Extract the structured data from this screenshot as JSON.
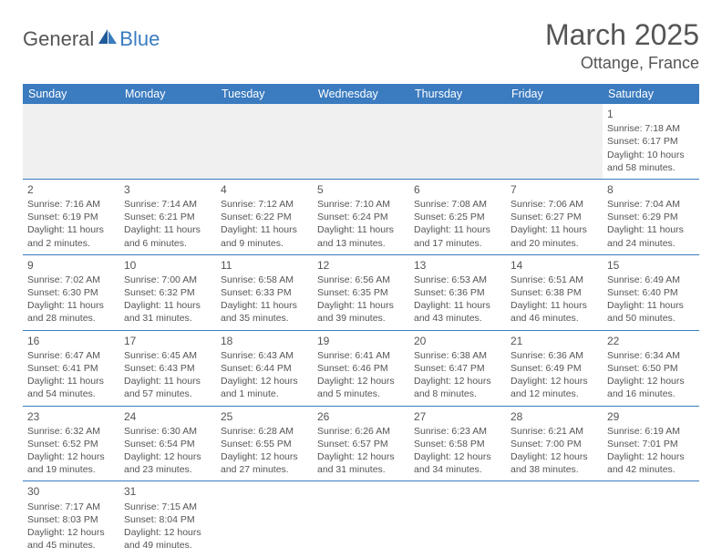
{
  "logo": {
    "part1": "General",
    "part2": "Blue"
  },
  "title": "March 2025",
  "location": "Ottange, France",
  "colors": {
    "header_bg": "#3b7bbf",
    "header_fg": "#ffffff",
    "text": "#555555",
    "rule": "#3b7bbf",
    "blank_bg": "#f0f0f0",
    "page_bg": "#ffffff"
  },
  "day_headers": [
    "Sunday",
    "Monday",
    "Tuesday",
    "Wednesday",
    "Thursday",
    "Friday",
    "Saturday"
  ],
  "weeks": [
    [
      null,
      null,
      null,
      null,
      null,
      null,
      {
        "n": "1",
        "sr": "Sunrise: 7:18 AM",
        "ss": "Sunset: 6:17 PM",
        "dl": "Daylight: 10 hours and 58 minutes."
      }
    ],
    [
      {
        "n": "2",
        "sr": "Sunrise: 7:16 AM",
        "ss": "Sunset: 6:19 PM",
        "dl": "Daylight: 11 hours and 2 minutes."
      },
      {
        "n": "3",
        "sr": "Sunrise: 7:14 AM",
        "ss": "Sunset: 6:21 PM",
        "dl": "Daylight: 11 hours and 6 minutes."
      },
      {
        "n": "4",
        "sr": "Sunrise: 7:12 AM",
        "ss": "Sunset: 6:22 PM",
        "dl": "Daylight: 11 hours and 9 minutes."
      },
      {
        "n": "5",
        "sr": "Sunrise: 7:10 AM",
        "ss": "Sunset: 6:24 PM",
        "dl": "Daylight: 11 hours and 13 minutes."
      },
      {
        "n": "6",
        "sr": "Sunrise: 7:08 AM",
        "ss": "Sunset: 6:25 PM",
        "dl": "Daylight: 11 hours and 17 minutes."
      },
      {
        "n": "7",
        "sr": "Sunrise: 7:06 AM",
        "ss": "Sunset: 6:27 PM",
        "dl": "Daylight: 11 hours and 20 minutes."
      },
      {
        "n": "8",
        "sr": "Sunrise: 7:04 AM",
        "ss": "Sunset: 6:29 PM",
        "dl": "Daylight: 11 hours and 24 minutes."
      }
    ],
    [
      {
        "n": "9",
        "sr": "Sunrise: 7:02 AM",
        "ss": "Sunset: 6:30 PM",
        "dl": "Daylight: 11 hours and 28 minutes."
      },
      {
        "n": "10",
        "sr": "Sunrise: 7:00 AM",
        "ss": "Sunset: 6:32 PM",
        "dl": "Daylight: 11 hours and 31 minutes."
      },
      {
        "n": "11",
        "sr": "Sunrise: 6:58 AM",
        "ss": "Sunset: 6:33 PM",
        "dl": "Daylight: 11 hours and 35 minutes."
      },
      {
        "n": "12",
        "sr": "Sunrise: 6:56 AM",
        "ss": "Sunset: 6:35 PM",
        "dl": "Daylight: 11 hours and 39 minutes."
      },
      {
        "n": "13",
        "sr": "Sunrise: 6:53 AM",
        "ss": "Sunset: 6:36 PM",
        "dl": "Daylight: 11 hours and 43 minutes."
      },
      {
        "n": "14",
        "sr": "Sunrise: 6:51 AM",
        "ss": "Sunset: 6:38 PM",
        "dl": "Daylight: 11 hours and 46 minutes."
      },
      {
        "n": "15",
        "sr": "Sunrise: 6:49 AM",
        "ss": "Sunset: 6:40 PM",
        "dl": "Daylight: 11 hours and 50 minutes."
      }
    ],
    [
      {
        "n": "16",
        "sr": "Sunrise: 6:47 AM",
        "ss": "Sunset: 6:41 PM",
        "dl": "Daylight: 11 hours and 54 minutes."
      },
      {
        "n": "17",
        "sr": "Sunrise: 6:45 AM",
        "ss": "Sunset: 6:43 PM",
        "dl": "Daylight: 11 hours and 57 minutes."
      },
      {
        "n": "18",
        "sr": "Sunrise: 6:43 AM",
        "ss": "Sunset: 6:44 PM",
        "dl": "Daylight: 12 hours and 1 minute."
      },
      {
        "n": "19",
        "sr": "Sunrise: 6:41 AM",
        "ss": "Sunset: 6:46 PM",
        "dl": "Daylight: 12 hours and 5 minutes."
      },
      {
        "n": "20",
        "sr": "Sunrise: 6:38 AM",
        "ss": "Sunset: 6:47 PM",
        "dl": "Daylight: 12 hours and 8 minutes."
      },
      {
        "n": "21",
        "sr": "Sunrise: 6:36 AM",
        "ss": "Sunset: 6:49 PM",
        "dl": "Daylight: 12 hours and 12 minutes."
      },
      {
        "n": "22",
        "sr": "Sunrise: 6:34 AM",
        "ss": "Sunset: 6:50 PM",
        "dl": "Daylight: 12 hours and 16 minutes."
      }
    ],
    [
      {
        "n": "23",
        "sr": "Sunrise: 6:32 AM",
        "ss": "Sunset: 6:52 PM",
        "dl": "Daylight: 12 hours and 19 minutes."
      },
      {
        "n": "24",
        "sr": "Sunrise: 6:30 AM",
        "ss": "Sunset: 6:54 PM",
        "dl": "Daylight: 12 hours and 23 minutes."
      },
      {
        "n": "25",
        "sr": "Sunrise: 6:28 AM",
        "ss": "Sunset: 6:55 PM",
        "dl": "Daylight: 12 hours and 27 minutes."
      },
      {
        "n": "26",
        "sr": "Sunrise: 6:26 AM",
        "ss": "Sunset: 6:57 PM",
        "dl": "Daylight: 12 hours and 31 minutes."
      },
      {
        "n": "27",
        "sr": "Sunrise: 6:23 AM",
        "ss": "Sunset: 6:58 PM",
        "dl": "Daylight: 12 hours and 34 minutes."
      },
      {
        "n": "28",
        "sr": "Sunrise: 6:21 AM",
        "ss": "Sunset: 7:00 PM",
        "dl": "Daylight: 12 hours and 38 minutes."
      },
      {
        "n": "29",
        "sr": "Sunrise: 6:19 AM",
        "ss": "Sunset: 7:01 PM",
        "dl": "Daylight: 12 hours and 42 minutes."
      }
    ],
    [
      {
        "n": "30",
        "sr": "Sunrise: 7:17 AM",
        "ss": "Sunset: 8:03 PM",
        "dl": "Daylight: 12 hours and 45 minutes."
      },
      {
        "n": "31",
        "sr": "Sunrise: 7:15 AM",
        "ss": "Sunset: 8:04 PM",
        "dl": "Daylight: 12 hours and 49 minutes."
      },
      null,
      null,
      null,
      null,
      null
    ]
  ]
}
